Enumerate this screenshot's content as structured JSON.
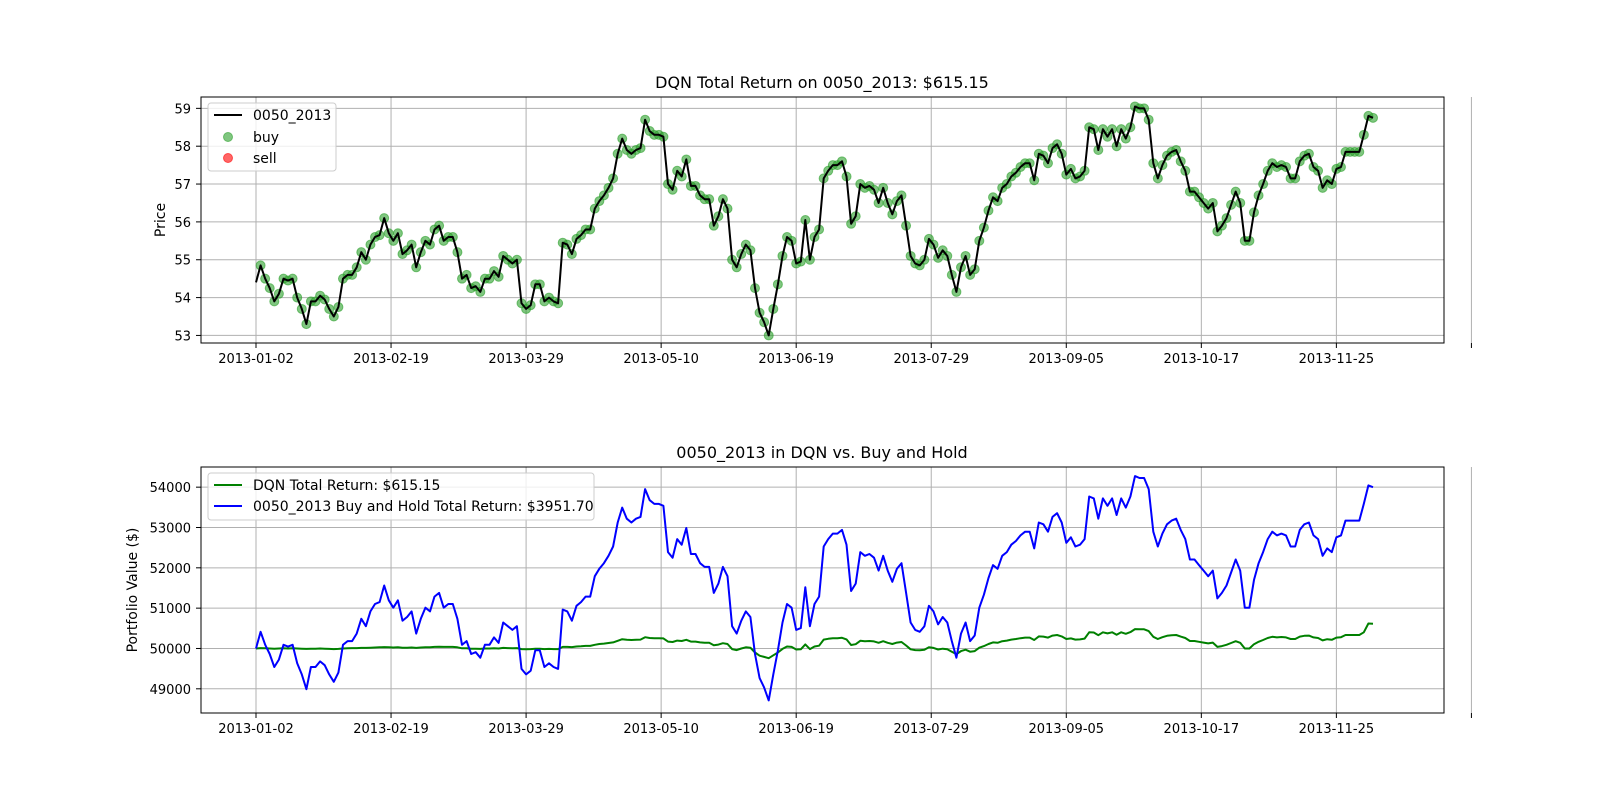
{
  "chart_data": [
    {
      "type": "line",
      "title": "DQN Total Return on 0050_2013: $615.15",
      "xlabel": "",
      "ylabel": "Price",
      "ylim": [
        52.8,
        59.3
      ],
      "yticks": [
        53,
        54,
        55,
        56,
        57,
        58,
        59
      ],
      "xticks": [
        "2013-01-02",
        "2013-02-19",
        "2013-03-29",
        "2013-05-10",
        "2013-06-19",
        "2013-07-29",
        "2013-09-05",
        "2013-10-17",
        "2013-11-25",
        ""
      ],
      "grid": true,
      "legend_position": "upper-left",
      "series": [
        {
          "name": "0050_2013",
          "kind": "line",
          "color": "#000000",
          "values": [
            54.4,
            54.85,
            54.5,
            54.25,
            53.9,
            54.1,
            54.5,
            54.45,
            54.5,
            54.0,
            53.7,
            53.3,
            53.9,
            53.9,
            54.05,
            53.95,
            53.7,
            53.5,
            53.75,
            54.5,
            54.6,
            54.6,
            54.8,
            55.2,
            55.0,
            55.4,
            55.6,
            55.65,
            56.1,
            55.7,
            55.5,
            55.7,
            55.15,
            55.25,
            55.4,
            54.8,
            55.2,
            55.5,
            55.4,
            55.8,
            55.9,
            55.5,
            55.6,
            55.6,
            55.2,
            54.5,
            54.6,
            54.25,
            54.3,
            54.15,
            54.5,
            54.5,
            54.7,
            54.55,
            55.1,
            55.0,
            54.9,
            55.0,
            53.85,
            53.7,
            53.8,
            54.35,
            54.35,
            53.9,
            54.0,
            53.9,
            53.85,
            55.45,
            55.4,
            55.15,
            55.55,
            55.65,
            55.8,
            55.8,
            56.35,
            56.55,
            56.7,
            56.9,
            57.15,
            57.8,
            58.2,
            57.9,
            57.8,
            57.9,
            57.95,
            58.7,
            58.4,
            58.3,
            58.3,
            58.25,
            57.0,
            56.85,
            57.35,
            57.2,
            57.65,
            56.95,
            56.95,
            56.7,
            56.6,
            56.6,
            55.9,
            56.15,
            56.6,
            56.35,
            55.0,
            54.8,
            55.15,
            55.4,
            55.25,
            54.25,
            53.6,
            53.35,
            53.0,
            53.7,
            54.35,
            55.1,
            55.6,
            55.5,
            54.9,
            54.95,
            56.05,
            55.0,
            55.6,
            55.8,
            57.15,
            57.35,
            57.5,
            57.5,
            57.6,
            57.2,
            55.95,
            56.15,
            57.0,
            56.9,
            56.95,
            56.85,
            56.5,
            56.9,
            56.5,
            56.2,
            56.55,
            56.7,
            55.9,
            55.1,
            54.9,
            54.85,
            55.0,
            55.55,
            55.4,
            55.05,
            55.25,
            55.1,
            54.6,
            54.15,
            54.8,
            55.1,
            54.6,
            54.75,
            55.5,
            55.85,
            56.3,
            56.65,
            56.55,
            56.9,
            57.0,
            57.2,
            57.3,
            57.45,
            57.55,
            57.55,
            57.1,
            57.8,
            57.75,
            57.55,
            57.95,
            58.05,
            57.8,
            57.25,
            57.4,
            57.15,
            57.2,
            57.35,
            58.5,
            58.45,
            57.9,
            58.45,
            58.25,
            58.45,
            58.0,
            58.45,
            58.2,
            58.5,
            59.05,
            59.0,
            59.0,
            58.7,
            57.55,
            57.15,
            57.5,
            57.75,
            57.85,
            57.9,
            57.6,
            57.35,
            56.8,
            56.8,
            56.65,
            56.5,
            56.35,
            56.5,
            55.75,
            55.9,
            56.1,
            56.45,
            56.8,
            56.5,
            55.5,
            55.5,
            56.25,
            56.7,
            57.0,
            57.35,
            57.55,
            57.45,
            57.5,
            57.45,
            57.15,
            57.15,
            57.6,
            57.75,
            57.8,
            57.45,
            57.35,
            56.9,
            57.1,
            57.0,
            57.4,
            57.45,
            57.85,
            57.85,
            57.85,
            57.85,
            58.3,
            58.8,
            58.75
          ]
        },
        {
          "name": "buy",
          "kind": "scatter",
          "color": "#2ca02c",
          "note_start_index": 1
        },
        {
          "name": "sell",
          "kind": "scatter",
          "color": "#ff0000",
          "values": []
        }
      ]
    },
    {
      "type": "line",
      "title": "0050_2013 in DQN vs. Buy and Hold",
      "xlabel": "",
      "ylabel": "Portfolio Value ($)",
      "ylim": [
        48400,
        54500
      ],
      "yticks": [
        49000,
        50000,
        51000,
        52000,
        53000,
        54000
      ],
      "xticks": [
        "2013-01-02",
        "2013-02-19",
        "2013-03-29",
        "2013-05-10",
        "2013-06-19",
        "2013-07-29",
        "2013-09-05",
        "2013-10-17",
        "2013-11-25",
        ""
      ],
      "grid": true,
      "legend_position": "upper-left",
      "series": [
        {
          "name": "DQN Total Return: $615.15",
          "color": "#008000",
          "values": [
            50000,
            50010,
            50005,
            50000,
            49995,
            50000,
            50005,
            50000,
            50005,
            50000,
            49995,
            49990,
            49995,
            49995,
            50000,
            49995,
            49990,
            49985,
            49990,
            50000,
            50005,
            50010,
            50010,
            50015,
            50015,
            50020,
            50025,
            50030,
            50035,
            50030,
            50025,
            50030,
            50020,
            50020,
            50025,
            50015,
            50025,
            50030,
            50030,
            50040,
            50045,
            50040,
            50040,
            50040,
            50030,
            50005,
            50005,
            49995,
            49995,
            49990,
            50000,
            50000,
            50005,
            50000,
            50015,
            50010,
            50005,
            50010,
            49985,
            49980,
            49985,
            49995,
            49995,
            49985,
            49990,
            49985,
            49985,
            50040,
            50040,
            50035,
            50050,
            50055,
            50065,
            50065,
            50090,
            50110,
            50120,
            50135,
            50150,
            50190,
            50230,
            50215,
            50210,
            50215,
            50220,
            50280,
            50260,
            50255,
            50255,
            50250,
            50170,
            50160,
            50195,
            50185,
            50215,
            50170,
            50170,
            50150,
            50140,
            50140,
            50080,
            50095,
            50130,
            50110,
            49985,
            49960,
            50000,
            50030,
            50020,
            49900,
            49820,
            49790,
            49760,
            49830,
            49900,
            49990,
            50050,
            50040,
            49975,
            49980,
            50100,
            49985,
            50050,
            50070,
            50220,
            50240,
            50255,
            50255,
            50265,
            50225,
            50085,
            50105,
            50190,
            50180,
            50185,
            50175,
            50140,
            50180,
            50140,
            50110,
            50145,
            50160,
            50075,
            49980,
            49960,
            49955,
            49970,
            50030,
            50015,
            49975,
            49995,
            49980,
            49920,
            49860,
            49935,
            49970,
            49920,
            49935,
            50020,
            50060,
            50110,
            50150,
            50140,
            50180,
            50195,
            50220,
            50235,
            50255,
            50270,
            50270,
            50210,
            50300,
            50295,
            50270,
            50320,
            50335,
            50300,
            50235,
            50250,
            50220,
            50225,
            50245,
            50400,
            50395,
            50330,
            50400,
            50375,
            50400,
            50340,
            50400,
            50365,
            50405,
            50480,
            50475,
            50475,
            50430,
            50290,
            50235,
            50280,
            50315,
            50330,
            50335,
            50295,
            50260,
            50185,
            50185,
            50165,
            50145,
            50125,
            50145,
            50040,
            50060,
            50090,
            50135,
            50180,
            50140,
            50000,
            50000,
            50105,
            50165,
            50210,
            50260,
            50290,
            50275,
            50285,
            50275,
            50235,
            50235,
            50295,
            50315,
            50320,
            50275,
            50260,
            50200,
            50230,
            50215,
            50270,
            50280,
            50335,
            50335,
            50335,
            50335,
            50400,
            50620,
            50615
          ]
        },
        {
          "name": "0050_2013 Buy and Hold Total Return: $3951.70",
          "color": "#0000ff",
          "from_first_chart": true
        }
      ]
    }
  ]
}
